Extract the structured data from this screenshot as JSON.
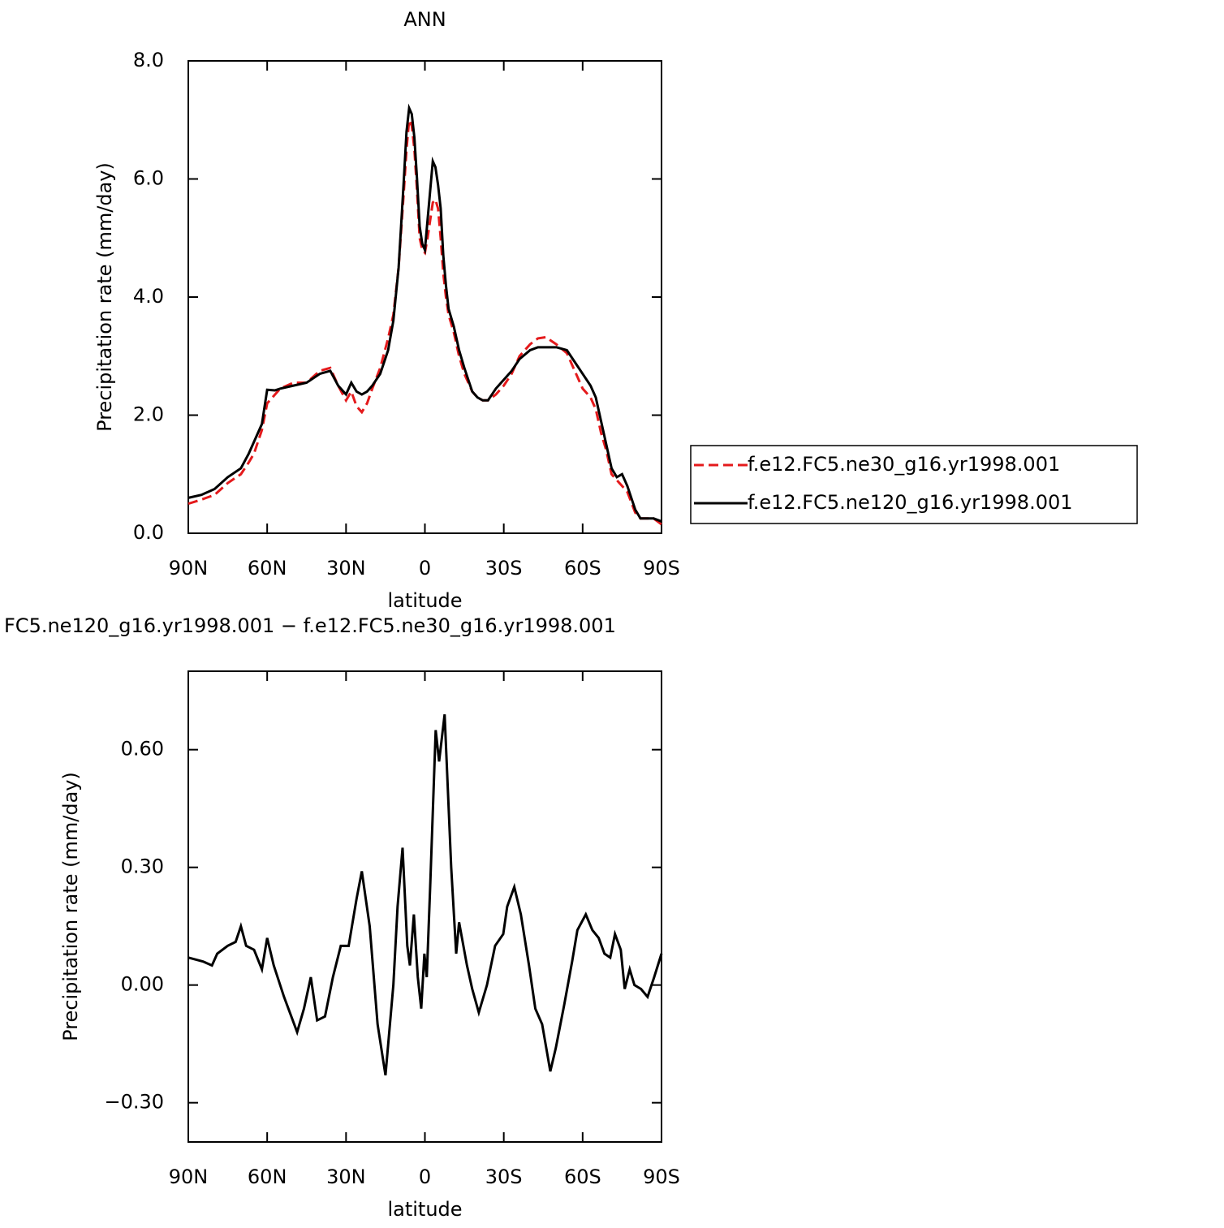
{
  "chart_data": [
    {
      "type": "line",
      "title": "ANN",
      "xlabel": "latitude",
      "ylabel": "Precipitation rate (mm/day)",
      "x": [
        90,
        85,
        80,
        75,
        70,
        67,
        65,
        62,
        60,
        57,
        55,
        50,
        45,
        40,
        36,
        33,
        30,
        28,
        26,
        24,
        22,
        20,
        17,
        14,
        12,
        10,
        8,
        7,
        6,
        5,
        4,
        3,
        2,
        1,
        0,
        -1,
        -2,
        -3,
        -4,
        -5,
        -6,
        -7,
        -8,
        -9,
        -11,
        -13,
        -15,
        -18,
        -20,
        -22,
        -24,
        -27,
        -30,
        -33,
        -36,
        -40,
        -43,
        -46,
        -50,
        -54,
        -57,
        -60,
        -63,
        -65,
        -67,
        -69,
        -71,
        -73,
        -75,
        -77,
        -80,
        -82,
        -85,
        -87,
        -90
      ],
      "series": [
        {
          "name": "f.e12.FC5.ne30_g16.yr1998.001",
          "color": "#e41a1c",
          "linestyle": "dashed",
          "values": [
            0.5,
            0.57,
            0.65,
            0.85,
            1.0,
            1.2,
            1.35,
            1.75,
            2.2,
            2.35,
            2.45,
            2.55,
            2.55,
            2.75,
            2.8,
            2.5,
            2.25,
            2.4,
            2.15,
            2.05,
            2.2,
            2.45,
            2.8,
            3.3,
            3.7,
            4.5,
            5.8,
            6.5,
            7.0,
            6.9,
            6.5,
            5.8,
            5.0,
            4.8,
            4.75,
            5.0,
            5.3,
            5.6,
            5.65,
            5.5,
            5.0,
            4.4,
            4.0,
            3.7,
            3.4,
            3.0,
            2.7,
            2.4,
            2.3,
            2.25,
            2.25,
            2.35,
            2.5,
            2.7,
            3.0,
            3.2,
            3.3,
            3.32,
            3.2,
            3.05,
            2.75,
            2.45,
            2.3,
            2.1,
            1.7,
            1.4,
            1.0,
            0.9,
            0.8,
            0.7,
            0.35,
            0.25,
            0.25,
            0.25,
            0.15
          ]
        },
        {
          "name": "f.e12.FC5.ne120_g16.yr1998.001",
          "color": "#000000",
          "linestyle": "solid",
          "values": [
            0.6,
            0.65,
            0.75,
            0.95,
            1.1,
            1.35,
            1.55,
            1.85,
            2.43,
            2.42,
            2.45,
            2.5,
            2.55,
            2.7,
            2.75,
            2.5,
            2.35,
            2.55,
            2.4,
            2.35,
            2.4,
            2.5,
            2.7,
            3.1,
            3.6,
            4.5,
            6.0,
            6.8,
            7.2,
            7.1,
            6.7,
            6.0,
            5.2,
            4.9,
            4.8,
            5.3,
            5.8,
            6.3,
            6.2,
            5.9,
            5.5,
            4.7,
            4.2,
            3.8,
            3.5,
            3.1,
            2.8,
            2.4,
            2.3,
            2.25,
            2.25,
            2.45,
            2.6,
            2.75,
            2.95,
            3.1,
            3.15,
            3.15,
            3.15,
            3.1,
            2.9,
            2.7,
            2.5,
            2.3,
            1.9,
            1.5,
            1.1,
            0.95,
            1.0,
            0.8,
            0.4,
            0.25,
            0.25,
            0.25,
            0.2
          ]
        }
      ],
      "xlim": [
        90,
        -90
      ],
      "xticks": [
        {
          "value": 90,
          "label": "90N"
        },
        {
          "value": 60,
          "label": "60N"
        },
        {
          "value": 30,
          "label": "30N"
        },
        0,
        {
          "value": -30,
          "label": "30S"
        },
        {
          "value": -60,
          "label": "60S"
        },
        {
          "value": -90,
          "label": "90S"
        }
      ],
      "ylim": [
        0,
        8
      ],
      "yticks": [
        {
          "value": 0,
          "label": "0.0"
        },
        {
          "value": 2,
          "label": "2.0"
        },
        {
          "value": 4,
          "label": "4.0"
        },
        {
          "value": 6,
          "label": "6.0"
        },
        {
          "value": 8,
          "label": "8.0"
        }
      ],
      "legend": "right"
    },
    {
      "type": "line",
      "title": "FC5.ne120_g16.yr1998.001 − f.e12.FC5.ne30_g16.yr1998.001",
      "xlabel": "latitude",
      "ylabel": "Precipitation rate (mm/day)",
      "x": [
        90,
        84.4,
        81,
        79,
        75,
        72,
        70,
        68,
        65,
        62,
        60,
        57.5,
        53.6,
        48.6,
        46,
        43.4,
        41,
        38,
        35,
        32,
        29,
        26,
        24,
        21,
        18,
        15,
        12,
        10.4,
        8.5,
        6.7,
        5.7,
        4.2,
        2.7,
        1.4,
        0.2,
        -0.7,
        -2,
        -4.1,
        -5.4,
        -7.5,
        -10,
        -11.9,
        -13,
        -16,
        -18,
        -20.5,
        -23.6,
        -26.7,
        -29.8,
        -31.3,
        -34,
        -36.5,
        -39.6,
        -42,
        -44.6,
        -47.7,
        -49.8,
        -53,
        -56,
        -58,
        -61.2,
        -63.7,
        -66.1,
        -68.3,
        -70.5,
        -72.3,
        -74.5,
        -76,
        -77.9,
        -79.7,
        -82.2,
        -84.7,
        -87.2,
        -90
      ],
      "values": [
        0.07,
        0.06,
        0.05,
        0.08,
        0.1,
        0.11,
        0.15,
        0.1,
        0.09,
        0.04,
        0.12,
        0.05,
        -0.03,
        -0.12,
        -0.06,
        0.02,
        -0.09,
        -0.08,
        0.02,
        0.1,
        0.1,
        0.22,
        0.29,
        0.15,
        -0.1,
        -0.23,
        0.0,
        0.2,
        0.35,
        0.1,
        0.05,
        0.18,
        0.02,
        -0.06,
        0.08,
        0.02,
        0.25,
        0.65,
        0.57,
        0.69,
        0.3,
        0.08,
        0.16,
        0.05,
        -0.01,
        -0.07,
        0.0,
        0.1,
        0.13,
        0.2,
        0.25,
        0.18,
        0.05,
        -0.06,
        -0.1,
        -0.22,
        -0.16,
        -0.05,
        0.06,
        0.14,
        0.18,
        0.14,
        0.12,
        0.08,
        0.07,
        0.13,
        0.09,
        -0.01,
        0.04,
        0.0,
        -0.01,
        -0.03,
        0.02,
        0.08
      ],
      "color": "#000000",
      "linestyle": "solid",
      "xlim": [
        90,
        -90
      ],
      "xticks": [
        {
          "value": 90,
          "label": "90N"
        },
        {
          "value": 60,
          "label": "60N"
        },
        {
          "value": 30,
          "label": "30N"
        },
        0,
        {
          "value": -30,
          "label": "30S"
        },
        {
          "value": -60,
          "label": "60S"
        },
        {
          "value": -90,
          "label": "90S"
        }
      ],
      "ylim": [
        -0.4,
        0.8
      ],
      "yticks": [
        {
          "value": -0.3,
          "label": "−0.30"
        },
        {
          "value": 0,
          "label": "0.00"
        },
        {
          "value": 0.3,
          "label": "0.30"
        },
        {
          "value": 0.6,
          "label": "0.60"
        }
      ]
    }
  ]
}
